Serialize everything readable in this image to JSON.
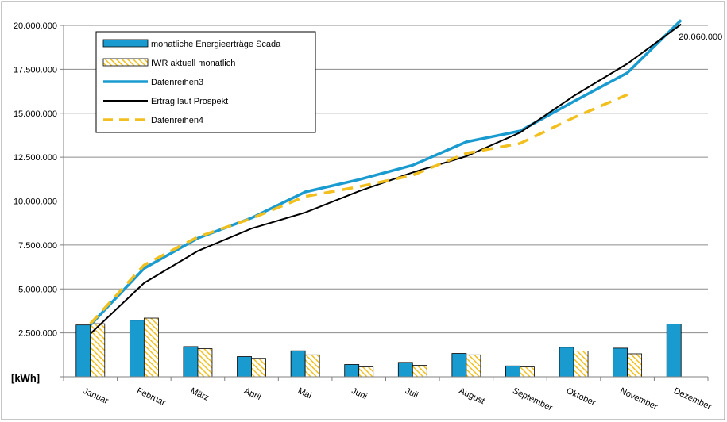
{
  "chart_data": {
    "type": "bar",
    "ylabel": "[kWh]",
    "ylim": [
      0,
      20000000
    ],
    "yticks": [
      "0",
      "2.500.000",
      "5.000.000",
      "7.500.000",
      "10.000.000",
      "12.500.000",
      "15.000.000",
      "17.500.000",
      "20.000.000"
    ],
    "grid": true,
    "legend_position": "top-left",
    "categories": [
      "Januar",
      "Februar",
      "März",
      "April",
      "Mai",
      "Juni",
      "Juli",
      "August",
      "September",
      "Oktober",
      "November",
      "Dezember"
    ],
    "series": [
      {
        "name": "monatliche Energieerträge Scada",
        "kind": "bar",
        "color": "#1a9bd0",
        "values": [
          2950000,
          3220000,
          1720000,
          1150000,
          1480000,
          700000,
          820000,
          1330000,
          620000,
          1680000,
          1630000,
          3000000
        ]
      },
      {
        "name": "IWR aktuell monatlich",
        "kind": "bar-hatched",
        "color": "#f2c01e",
        "values": [
          3020000,
          3340000,
          1600000,
          1050000,
          1250000,
          560000,
          650000,
          1250000,
          560000,
          1470000,
          1310000,
          null
        ]
      },
      {
        "name": "Datenreihen3",
        "kind": "line",
        "color": "#1a9bd0",
        "values": [
          2950000,
          6170000,
          7890000,
          9040000,
          10520000,
          11220000,
          12040000,
          13370000,
          13990000,
          15670000,
          17300000,
          20300000
        ]
      },
      {
        "name": "Ertrag laut Prospekt",
        "kind": "line",
        "color": "#000000",
        "values": [
          2450000,
          5340000,
          7160000,
          8440000,
          9350000,
          10560000,
          11630000,
          12550000,
          13900000,
          15980000,
          17820000,
          20060000
        ]
      },
      {
        "name": "Datenreihen4",
        "kind": "dashed-line",
        "color": "#f2c01e",
        "values": [
          3020000,
          6360000,
          7960000,
          9010000,
          10260000,
          10820000,
          11470000,
          12720000,
          13280000,
          14750000,
          16060000,
          null
        ]
      }
    ],
    "annotations": [
      {
        "text": "20.060.000",
        "category": "Dezember"
      }
    ]
  }
}
